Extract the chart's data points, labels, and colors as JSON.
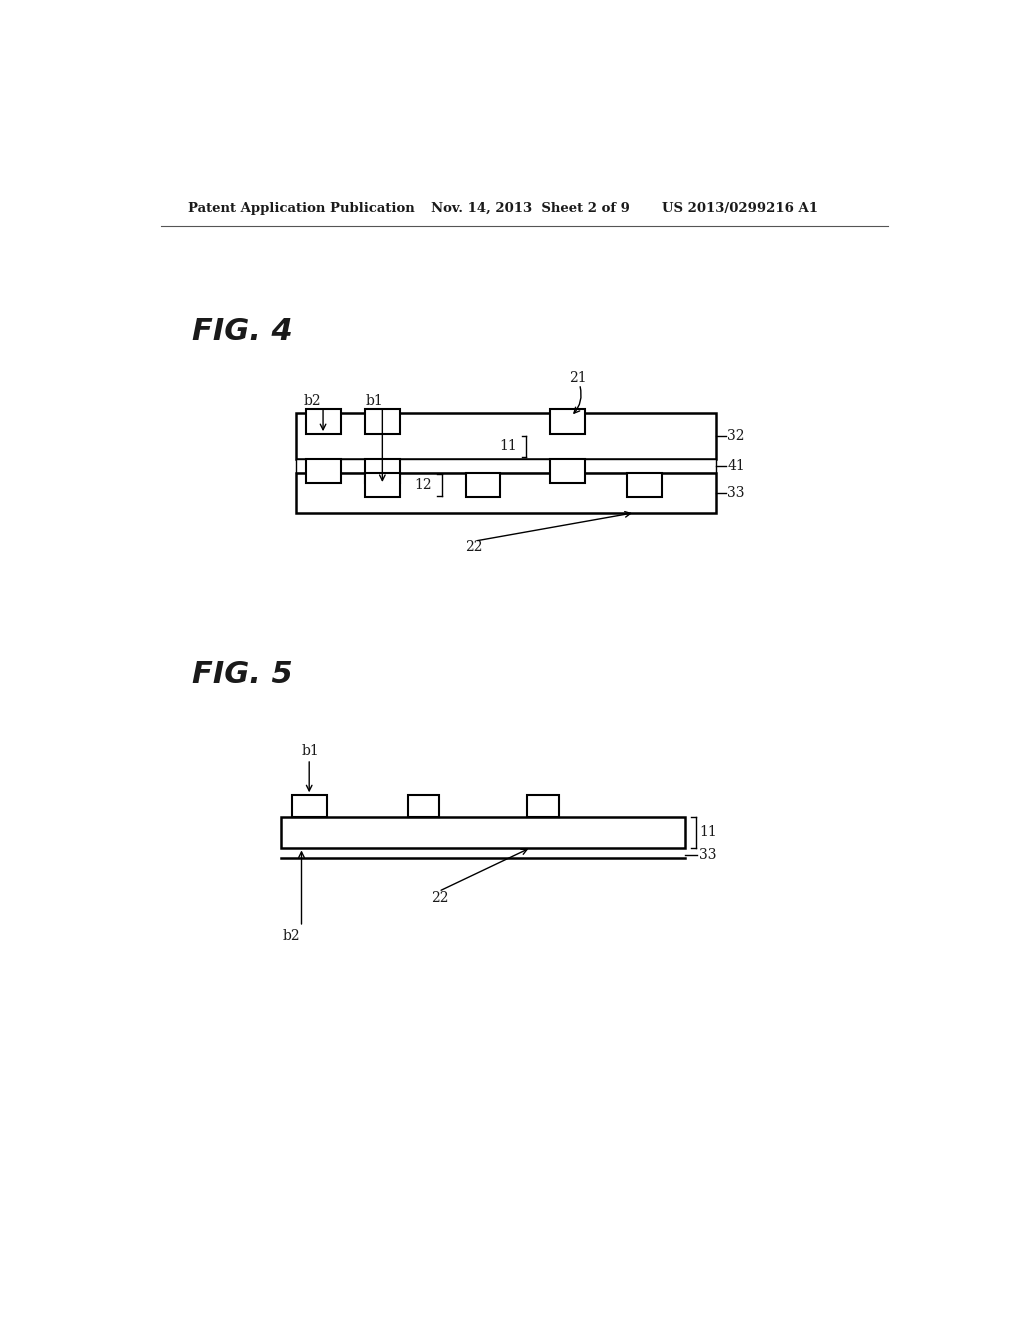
{
  "bg_color": "#ffffff",
  "header_left": "Patent Application Publication",
  "header_mid": "Nov. 14, 2013  Sheet 2 of 9",
  "header_right": "US 2013/0299216 A1",
  "fig4_title": "FIG. 4",
  "fig5_title": "FIG. 5"
}
